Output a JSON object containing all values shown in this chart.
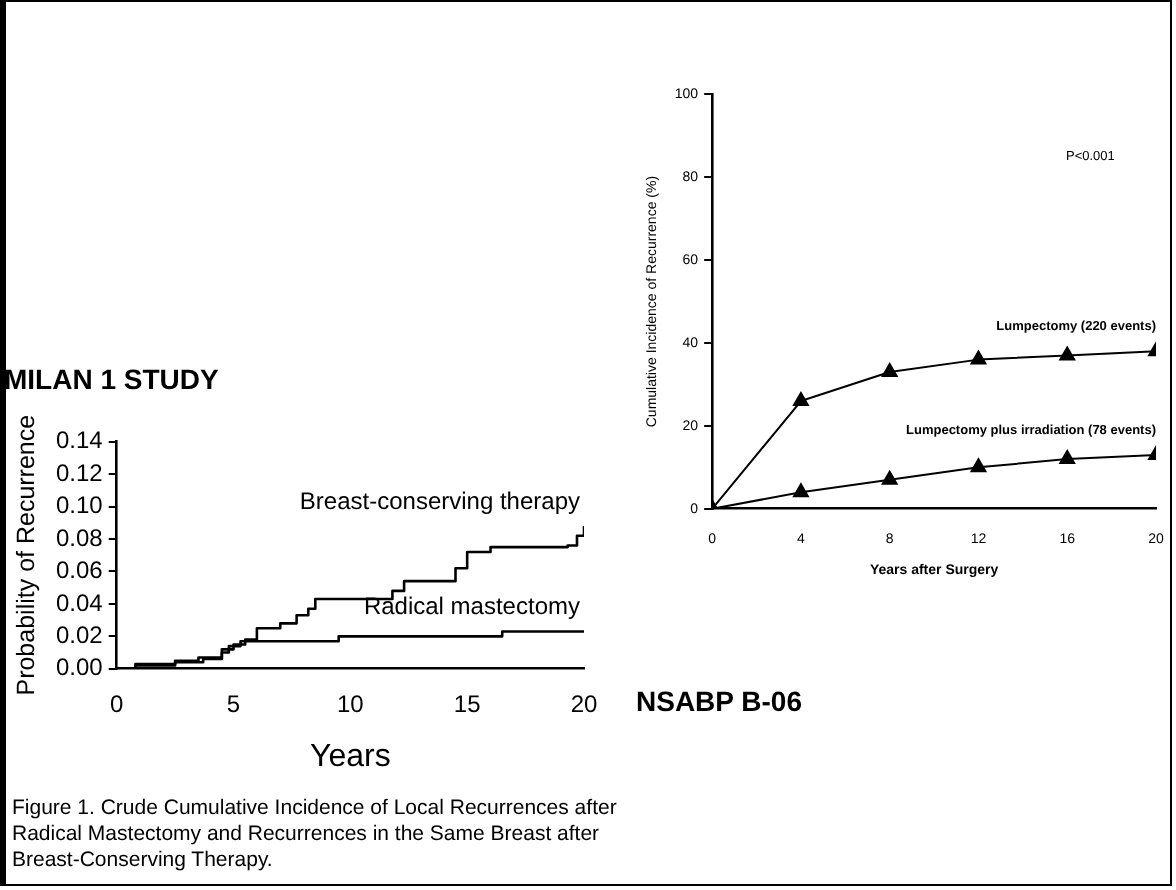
{
  "chart_data": [
    {
      "type": "step",
      "title": "MILAN 1 STUDY",
      "xlabel": "Years",
      "ylabel": "Probability of Recurrence",
      "xlim": [
        0,
        20
      ],
      "xticks": [
        0,
        5,
        10,
        15,
        20
      ],
      "ylim": [
        0,
        0.14
      ],
      "yticks": [
        {
          "value": 0,
          "label": "0.00"
        },
        {
          "value": 0.02,
          "label": "0.02"
        },
        {
          "value": 0.04,
          "label": "0.04"
        },
        {
          "value": 0.06,
          "label": "0.06"
        },
        {
          "value": 0.08,
          "label": "0.08"
        },
        {
          "value": 0.1,
          "label": "0.10"
        },
        {
          "value": 0.12,
          "label": "0.12"
        },
        {
          "value": 0.14,
          "label": "0.14"
        }
      ],
      "grid": false,
      "legend": false,
      "annotations": [
        "Figure 1. Crude Cumulative Incidence of Local Recurrences after Radical Mastectomy and Recurrences in the Same Breast after Breast-Conserving Therapy."
      ],
      "series": [
        {
          "name": "Breast-conserving therapy",
          "color": "#000000",
          "x": [
            0,
            0.8,
            2.5,
            3.5,
            4.5,
            5,
            5.5,
            6,
            7,
            7.7,
            8.2,
            8.5,
            11.8,
            12.3,
            14.5,
            15,
            16,
            19.3,
            19.7,
            20
          ],
          "values": [
            0,
            0.003,
            0.005,
            0.007,
            0.012,
            0.015,
            0.018,
            0.025,
            0.028,
            0.033,
            0.037,
            0.043,
            0.048,
            0.054,
            0.062,
            0.072,
            0.075,
            0.076,
            0.082,
            0.088
          ]
        },
        {
          "name": "Radical mastectomy",
          "color": "#000000",
          "x": [
            0,
            0.8,
            2.5,
            3.7,
            4.5,
            4.8,
            5.3,
            9.5,
            16.5,
            20
          ],
          "values": [
            0,
            0.002,
            0.004,
            0.006,
            0.01,
            0.014,
            0.017,
            0.02,
            0.023,
            0.023
          ]
        }
      ]
    },
    {
      "type": "line",
      "title": "NSABP B-06",
      "xlabel": "Years after Surgery",
      "ylabel": "Cumulative Incidence of Recurrence (%)",
      "xlim": [
        0,
        20
      ],
      "xticks": [
        0,
        4,
        8,
        12,
        16,
        20
      ],
      "ylim": [
        0,
        100
      ],
      "yticks": [
        0,
        20,
        40,
        60,
        80,
        100
      ],
      "grid": false,
      "legend": false,
      "marker": "triangle",
      "annotations": [
        "P<0.001"
      ],
      "x": [
        0,
        4,
        8,
        12,
        16,
        20
      ],
      "series": [
        {
          "name": "Lumpectomy (220 events)",
          "color": "#000000",
          "values": [
            0,
            26,
            33,
            36,
            37,
            38
          ]
        },
        {
          "name": "Lumpectomy plus irradiation (78 events)",
          "color": "#000000",
          "values": [
            0,
            4,
            7,
            10,
            12,
            13
          ]
        }
      ]
    }
  ]
}
